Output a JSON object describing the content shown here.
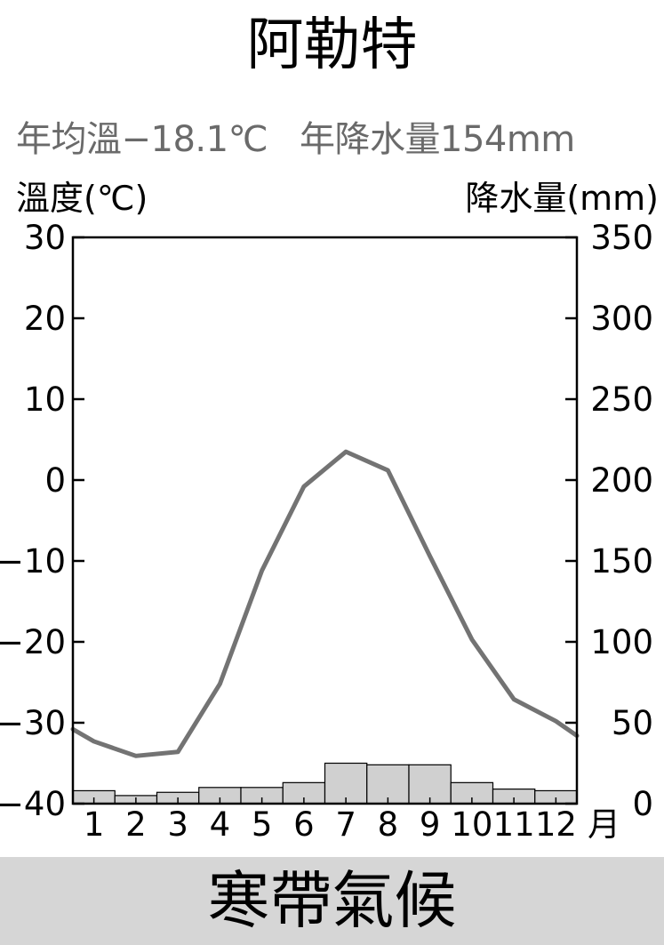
{
  "station_name": "阿勒特",
  "summary": {
    "avg_temp": "年均溫−18.1℃",
    "annual_precip": "年降水量154mm"
  },
  "climate_type": "寒帶氣候",
  "colors": {
    "temperature_line": "#737373",
    "precip_bar_fill": "#d0d0d0",
    "summary_text": "#6a6a6a",
    "footer_band": "#d6d6d6"
  },
  "chart_data": {
    "type": "bar+line",
    "categories": [
      "1",
      "2",
      "3",
      "4",
      "5",
      "6",
      "7",
      "8",
      "9",
      "10",
      "11",
      "12"
    ],
    "x_unit_label": "月",
    "left_axis": {
      "label": "溫度(℃)",
      "range": [
        -40,
        30
      ],
      "ticks": [
        "30",
        "20",
        "10",
        "0",
        "−10",
        "−20",
        "−30",
        "−40"
      ],
      "tick_values": [
        30,
        20,
        10,
        0,
        -10,
        -20,
        -30,
        -40
      ]
    },
    "right_axis": {
      "label": "降水量(mm)",
      "range": [
        0,
        350
      ],
      "ticks": [
        "350",
        "300",
        "250",
        "200",
        "150",
        "100",
        "50",
        "0"
      ],
      "tick_values": [
        350,
        300,
        250,
        200,
        150,
        100,
        50,
        0
      ]
    },
    "temperature": [
      -32.3,
      -34.1,
      -33.6,
      -25.2,
      -11.2,
      -0.8,
      3.5,
      1.2,
      -9.4,
      -19.7,
      -27.1,
      -29.8
    ],
    "temperature_boundary": {
      "start": -30.8,
      "end": -31.6
    },
    "precipitation": [
      8,
      5,
      7,
      10,
      10,
      13,
      25,
      24,
      24,
      13,
      9,
      8
    ]
  }
}
